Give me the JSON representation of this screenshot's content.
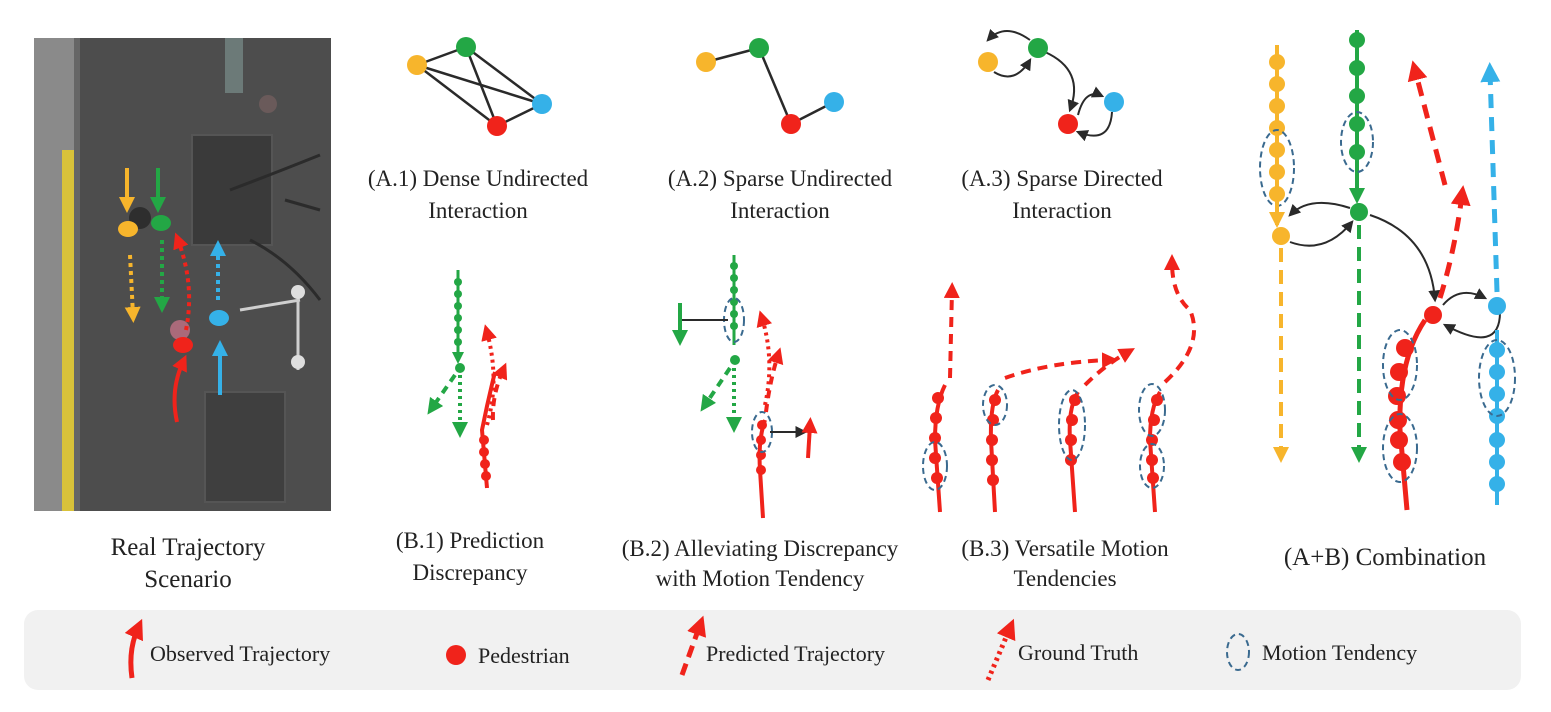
{
  "colors": {
    "red": "#f0231b",
    "green": "#23a745",
    "orange": "#f7b52c",
    "blue": "#35b1e8",
    "tendency": "#3a6a8f",
    "edge": "#2a2a2a",
    "legend_bg": "#f1f1f1"
  },
  "panels": {
    "real": {
      "caption": [
        "Real Trajectory",
        "Scenario"
      ]
    },
    "a1": {
      "caption": [
        "(A.1) Dense Undirected",
        "Interaction"
      ]
    },
    "a2": {
      "caption": [
        "(A.2) Sparse Undirected",
        "Interaction"
      ]
    },
    "a3": {
      "caption": [
        "(A.3) Sparse Directed",
        "Interaction"
      ]
    },
    "b1": {
      "caption": [
        "(B.1) Prediction",
        "Discrepancy"
      ]
    },
    "b2": {
      "caption": [
        "(B.2) Alleviating Discrepancy",
        "with Motion Tendency"
      ]
    },
    "b3": {
      "caption": [
        "(B.3) Versatile Motion",
        "Tendencies"
      ]
    },
    "ab": {
      "caption": [
        "(A+B) Combination"
      ]
    }
  },
  "legend": {
    "observed": "Observed Trajectory",
    "pedestrian": "Pedestrian",
    "predicted": "Predicted Trajectory",
    "ground_truth": "Ground Truth",
    "tendency": "Motion Tendency"
  }
}
